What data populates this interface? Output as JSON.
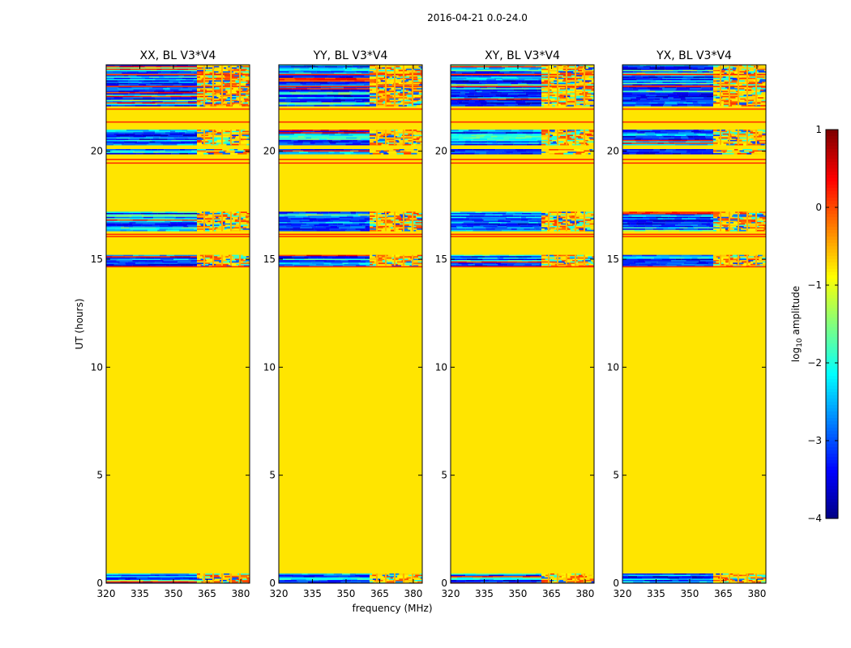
{
  "figure": {
    "suptitle": "2016-04-21 0.0-24.0",
    "xlabel": "frequency (MHz)",
    "ylabel": "UT (hours)"
  },
  "chart_data": [
    {
      "type": "heatmap",
      "title": "XX, BL V3*V4",
      "xlabel": "frequency (MHz)",
      "ylabel": "UT (hours)",
      "xlim": [
        320,
        384
      ],
      "ylim": [
        0,
        24
      ],
      "xticks": [
        320,
        335,
        350,
        365,
        380
      ],
      "yticks": [
        0,
        5,
        10,
        15,
        20
      ],
      "grid": false,
      "rfi_start_mhz": 360.5,
      "active_ut_ranges": [
        [
          0.0,
          0.45
        ],
        [
          14.7,
          15.2
        ],
        [
          16.3,
          17.2
        ],
        [
          19.9,
          20.1
        ],
        [
          20.3,
          21.0
        ],
        [
          22.1,
          24.0
        ]
      ],
      "flagged_level": -0.75
    },
    {
      "type": "heatmap",
      "title": "YY, BL V3*V4",
      "xlabel": "frequency (MHz)",
      "ylabel": "UT (hours)",
      "xlim": [
        320,
        384
      ],
      "ylim": [
        0,
        24
      ],
      "xticks": [
        320,
        335,
        350,
        365,
        380
      ],
      "yticks": [
        0,
        5,
        10,
        15,
        20
      ],
      "grid": false,
      "rfi_start_mhz": 360.5,
      "active_ut_ranges": [
        [
          0.0,
          0.45
        ],
        [
          14.7,
          15.2
        ],
        [
          16.3,
          17.2
        ],
        [
          19.9,
          20.1
        ],
        [
          20.3,
          21.0
        ],
        [
          22.1,
          24.0
        ]
      ],
      "flagged_level": -0.75
    },
    {
      "type": "heatmap",
      "title": "XY, BL V3*V4",
      "xlabel": "frequency (MHz)",
      "ylabel": "UT (hours)",
      "xlim": [
        320,
        384
      ],
      "ylim": [
        0,
        24
      ],
      "xticks": [
        320,
        335,
        350,
        365,
        380
      ],
      "yticks": [
        0,
        5,
        10,
        15,
        20
      ],
      "grid": false,
      "rfi_start_mhz": 360.5,
      "active_ut_ranges": [
        [
          0.0,
          0.45
        ],
        [
          14.7,
          15.2
        ],
        [
          16.3,
          17.2
        ],
        [
          19.9,
          20.1
        ],
        [
          20.3,
          21.0
        ],
        [
          22.1,
          24.0
        ]
      ],
      "flagged_level": -0.75
    },
    {
      "type": "heatmap",
      "title": "YX, BL V3*V4",
      "xlabel": "frequency (MHz)",
      "ylabel": "UT (hours)",
      "xlim": [
        320,
        384
      ],
      "ylim": [
        0,
        24
      ],
      "xticks": [
        320,
        335,
        350,
        365,
        380
      ],
      "yticks": [
        0,
        5,
        10,
        15,
        20
      ],
      "grid": false,
      "rfi_start_mhz": 360.5,
      "active_ut_ranges": [
        [
          0.0,
          0.45
        ],
        [
          14.7,
          15.2
        ],
        [
          16.3,
          17.2
        ],
        [
          19.9,
          20.1
        ],
        [
          20.3,
          21.0
        ],
        [
          22.1,
          24.0
        ]
      ],
      "flagged_level": -0.75
    }
  ],
  "colorbar": {
    "label": "log10 amplitude",
    "label_base": "log",
    "label_sub": "10",
    "label_rest": " amplitude",
    "range": [
      -4,
      1
    ],
    "ticks": [
      {
        "value": 1,
        "label": "1"
      },
      {
        "value": 0,
        "label": "0"
      },
      {
        "value": -1,
        "label": "−1"
      },
      {
        "value": -2,
        "label": "−2"
      },
      {
        "value": -3,
        "label": "−3"
      },
      {
        "value": -4,
        "label": "−4"
      }
    ],
    "colormap": "jet"
  }
}
